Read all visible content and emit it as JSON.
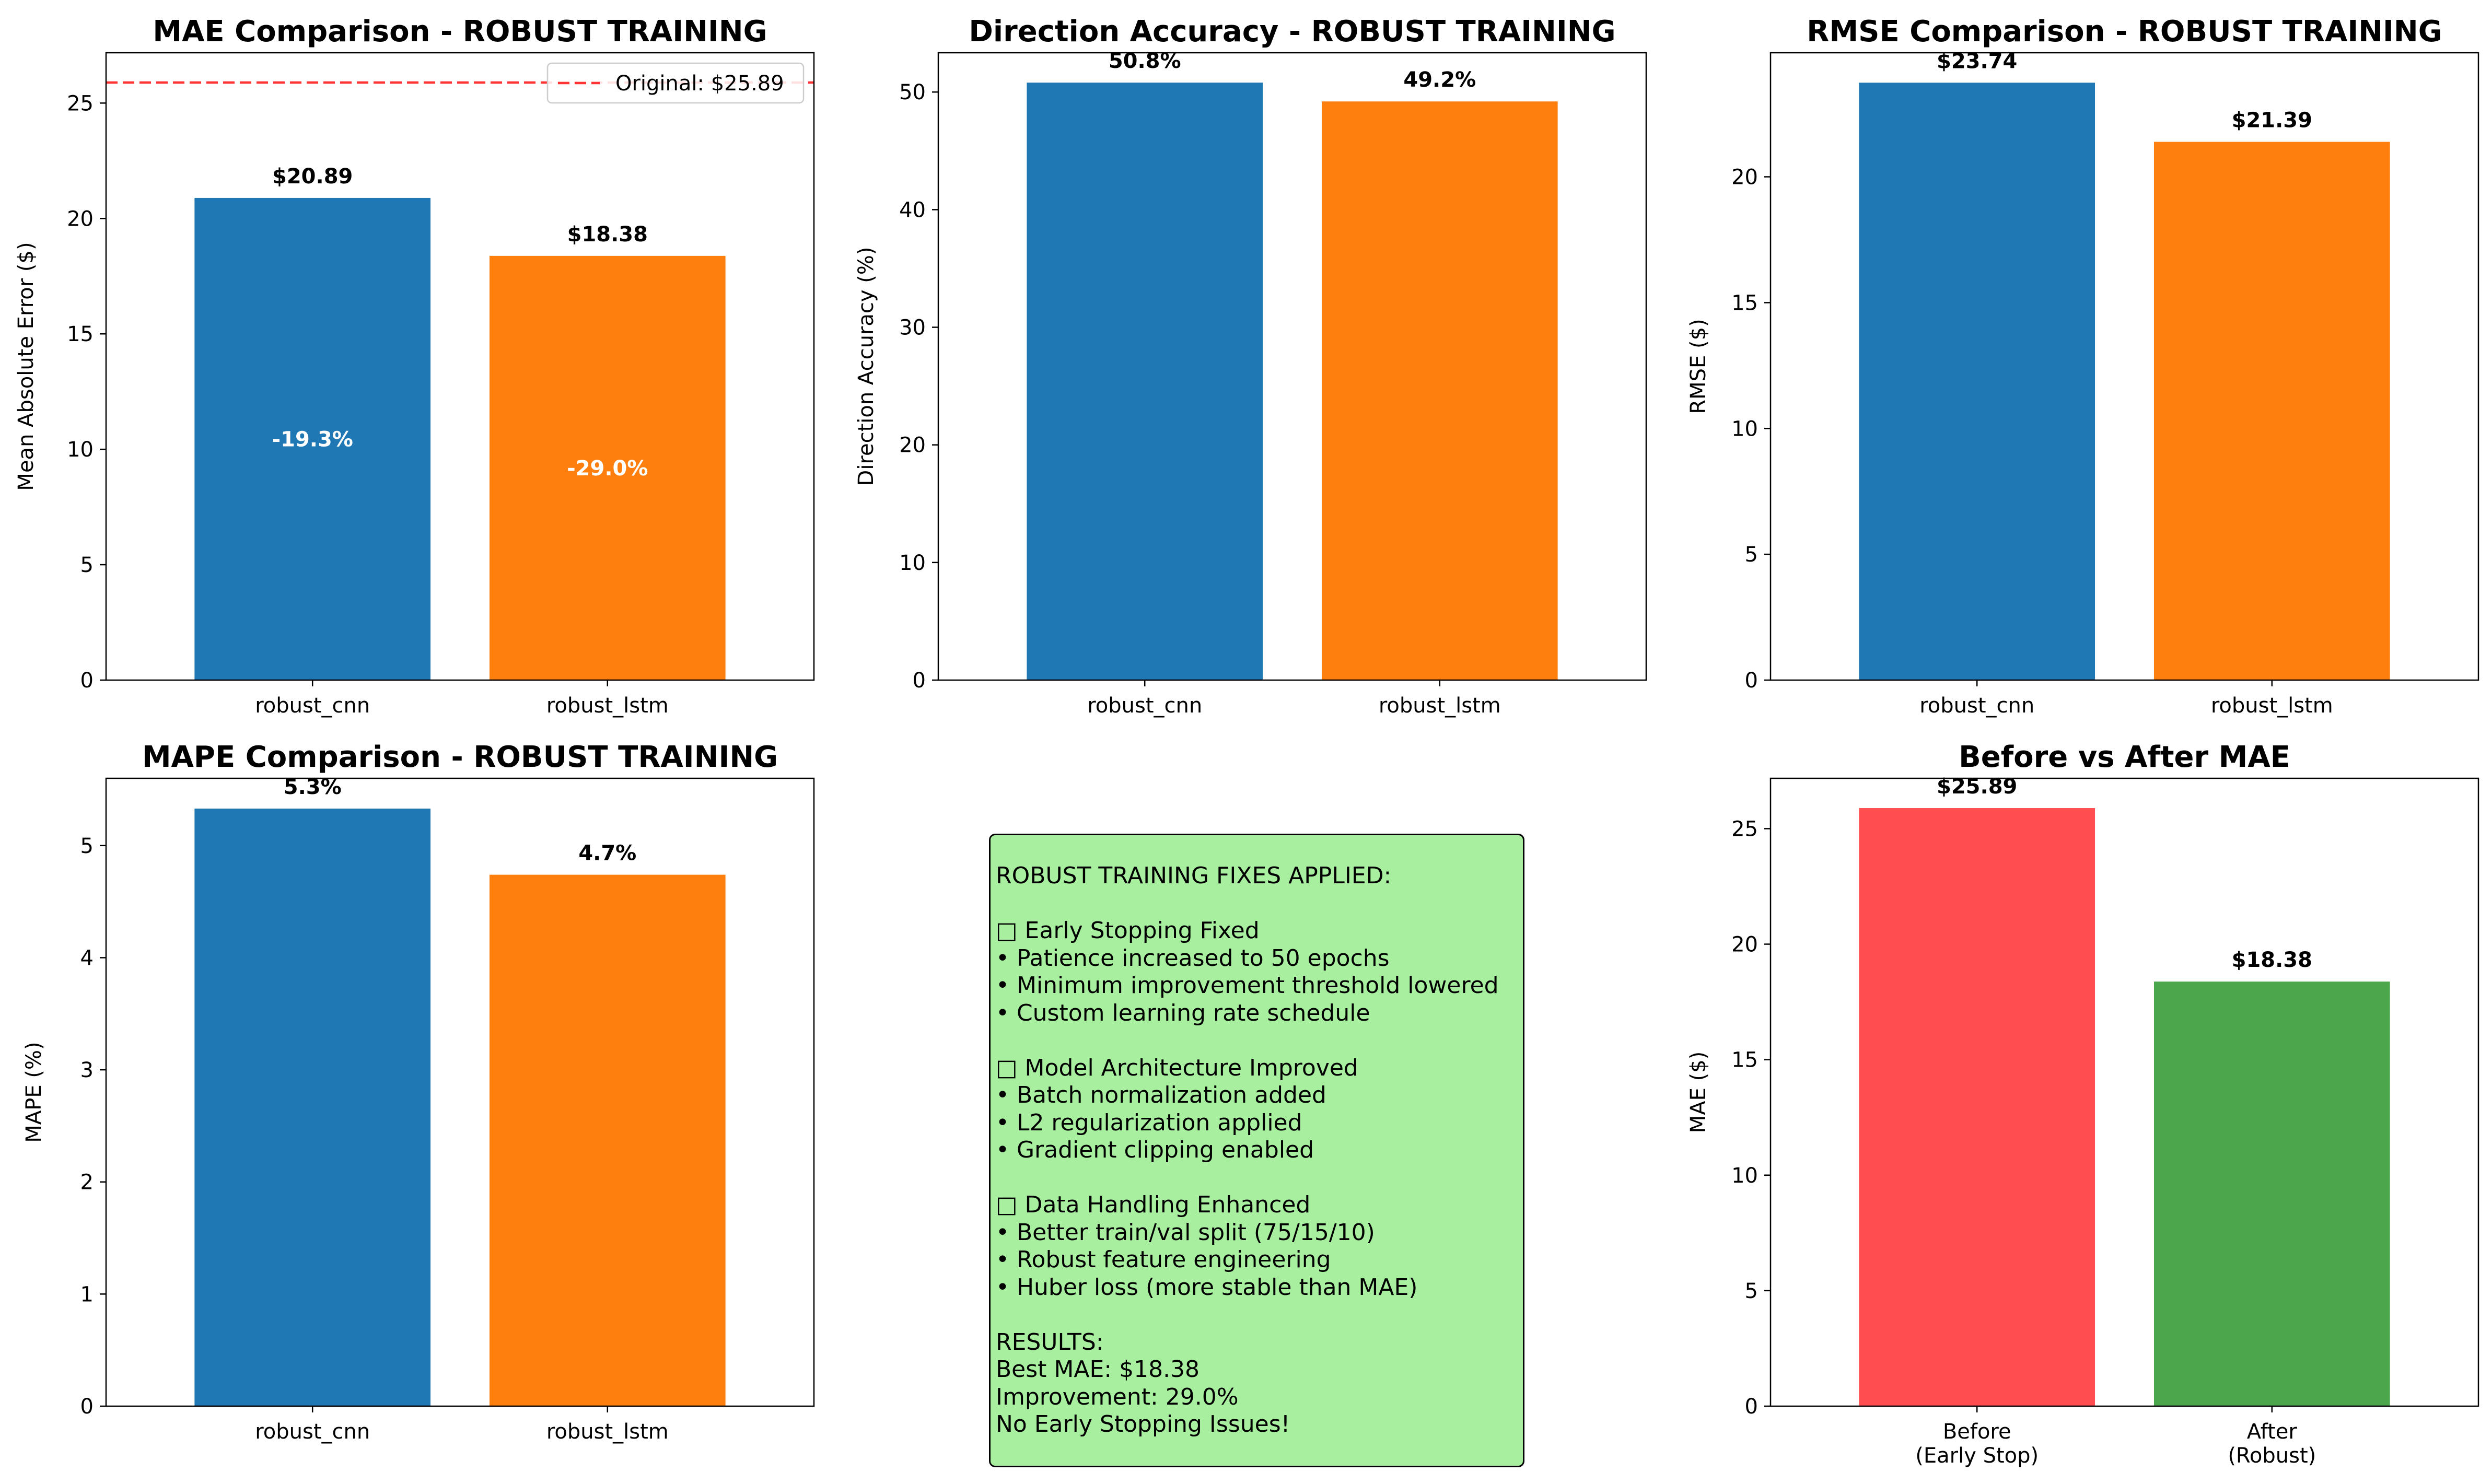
{
  "chart_data": [
    {
      "type": "bar",
      "title": "MAE Comparison - ROBUST TRAINING",
      "ylabel": "Mean Absolute Error ($)",
      "categories": [
        "robust_cnn",
        "robust_lstm"
      ],
      "values": [
        20.89,
        18.38
      ],
      "value_labels": [
        "$20.89",
        "$18.38"
      ],
      "inner_labels": [
        "-19.3%",
        "-29.0%"
      ],
      "colors": [
        "#1f77b4",
        "#ff7f0e"
      ],
      "ylim": [
        0,
        27.18
      ],
      "yticks": [
        0,
        5,
        10,
        15,
        20,
        25
      ],
      "reference_line": {
        "value": 25.89,
        "label": "Original: $25.89",
        "color": "#ff3333",
        "style": "dashed"
      },
      "legend": "top-right"
    },
    {
      "type": "bar",
      "title": "Direction Accuracy - ROBUST TRAINING",
      "ylabel": "Direction Accuracy (%)",
      "categories": [
        "robust_cnn",
        "robust_lstm"
      ],
      "values": [
        50.8,
        49.2
      ],
      "value_labels": [
        "50.8%",
        "49.2%"
      ],
      "colors": [
        "#1f77b4",
        "#ff7f0e"
      ],
      "ylim": [
        0,
        53.34
      ],
      "yticks": [
        0,
        10,
        20,
        30,
        40,
        50
      ]
    },
    {
      "type": "bar",
      "title": "RMSE Comparison - ROBUST TRAINING",
      "ylabel": "RMSE ($)",
      "categories": [
        "robust_cnn",
        "robust_lstm"
      ],
      "values": [
        23.74,
        21.39
      ],
      "value_labels": [
        "$23.74",
        "$21.39"
      ],
      "colors": [
        "#1f77b4",
        "#ff7f0e"
      ],
      "ylim": [
        0,
        24.93
      ],
      "yticks": [
        0,
        5,
        10,
        15,
        20
      ]
    },
    {
      "type": "bar",
      "title": "MAPE Comparison - ROBUST TRAINING",
      "ylabel": "MAPE (%)",
      "categories": [
        "robust_cnn",
        "robust_lstm"
      ],
      "values": [
        5.33,
        4.74
      ],
      "value_labels": [
        "5.3%",
        "4.7%"
      ],
      "colors": [
        "#1f77b4",
        "#ff7f0e"
      ],
      "ylim": [
        0,
        5.6
      ],
      "yticks": [
        0,
        1,
        2,
        3,
        4,
        5
      ]
    },
    {
      "type": "bar",
      "title": "Before vs After MAE",
      "ylabel": "MAE ($)",
      "categories": [
        "Before\n(Early Stop)",
        "After\n(Robust)"
      ],
      "values": [
        25.89,
        18.38
      ],
      "value_labels": [
        "$25.89",
        "$18.38"
      ],
      "colors": [
        "#ff4d50",
        "#4ca64c"
      ],
      "ylim": [
        0,
        27.18
      ],
      "yticks": [
        0,
        5,
        10,
        15,
        20,
        25
      ]
    }
  ],
  "info_box": {
    "lines": [
      "ROBUST TRAINING FIXES APPLIED:",
      "",
      "□ Early Stopping Fixed",
      "• Patience increased to 50 epochs",
      "• Minimum improvement threshold lowered",
      "• Custom learning rate schedule",
      "",
      "□ Model Architecture Improved",
      "• Batch normalization added",
      "• L2 regularization applied",
      "• Gradient clipping enabled",
      "",
      "□ Data Handling Enhanced",
      "• Better train/val split (75/15/10)",
      "• Robust feature engineering",
      "• Huber loss (more stable than MAE)",
      "",
      "RESULTS:",
      "Best MAE: $18.38",
      "Improvement: 29.0%",
      "No Early Stopping Issues!"
    ],
    "background": "#a8f0a0"
  }
}
